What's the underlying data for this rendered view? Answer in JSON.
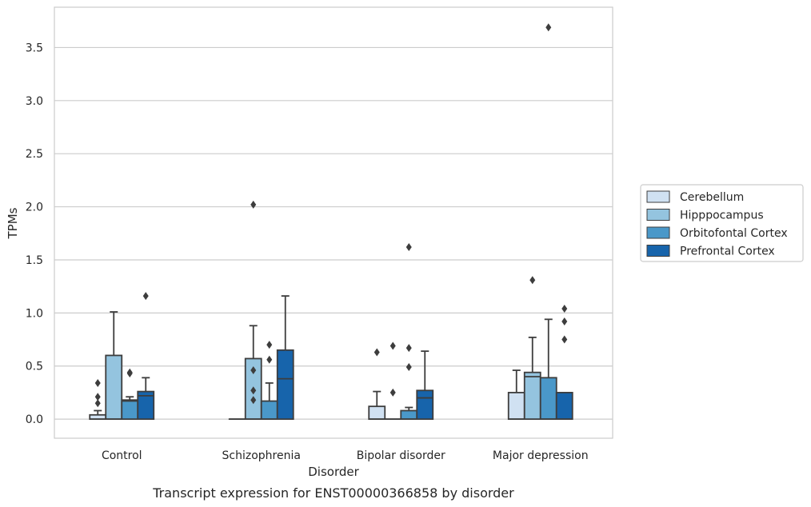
{
  "chart_data": {
    "type": "box",
    "title": "",
    "caption": "Transcript expression for ENST00000366858 by disorder",
    "xlabel": "Disorder",
    "ylabel": "TPMs",
    "ylim": [
      -0.18,
      3.88
    ],
    "yticks": [
      "0.0",
      "0.5",
      "1.0",
      "1.5",
      "2.0",
      "2.5",
      "3.0",
      "3.5"
    ],
    "grid": "horizontal",
    "legend_position": "right",
    "categories": [
      "Control",
      "Schizophrenia",
      "Bipolar disorder",
      "Major depression"
    ],
    "series": [
      {
        "name": "Cerebellum",
        "color": "#d0e1f2",
        "boxes": [
          {
            "q1": 0.0,
            "median": 0.0,
            "q3": 0.04,
            "whisker_low": 0.0,
            "whisker_high": 0.08,
            "outliers": [
              0.15,
              0.21,
              0.34
            ]
          },
          {
            "q1": 0.0,
            "median": 0.0,
            "q3": 0.0,
            "whisker_low": 0.0,
            "whisker_high": 0.0,
            "outliers": []
          },
          {
            "q1": 0.0,
            "median": 0.0,
            "q3": 0.12,
            "whisker_low": 0.0,
            "whisker_high": 0.26,
            "outliers": [
              0.63
            ]
          },
          {
            "q1": 0.0,
            "median": 0.0,
            "q3": 0.25,
            "whisker_low": 0.0,
            "whisker_high": 0.46,
            "outliers": []
          }
        ]
      },
      {
        "name": "Hipppocampus",
        "color": "#94c4df",
        "boxes": [
          {
            "q1": 0.0,
            "median": 0.0,
            "q3": 0.6,
            "whisker_low": 0.0,
            "whisker_high": 1.01,
            "outliers": []
          },
          {
            "q1": 0.0,
            "median": 0.0,
            "q3": 0.57,
            "whisker_low": 0.0,
            "whisker_high": 0.88,
            "outliers": [
              0.18,
              0.27,
              0.46,
              2.02
            ]
          },
          {
            "q1": 0.0,
            "median": 0.0,
            "q3": 0.0,
            "whisker_low": 0.0,
            "whisker_high": 0.0,
            "outliers": [
              0.25,
              0.69
            ]
          },
          {
            "q1": 0.0,
            "median": 0.4,
            "q3": 0.44,
            "whisker_low": 0.0,
            "whisker_high": 0.77,
            "outliers": [
              1.31
            ]
          }
        ]
      },
      {
        "name": "Orbitofontal Cortex",
        "color": "#4a98c9",
        "boxes": [
          {
            "q1": 0.0,
            "median": 0.17,
            "q3": 0.18,
            "whisker_low": 0.0,
            "whisker_high": 0.21,
            "outliers": [
              0.43,
              0.44
            ]
          },
          {
            "q1": 0.0,
            "median": 0.0,
            "q3": 0.17,
            "whisker_low": 0.0,
            "whisker_high": 0.34,
            "outliers": [
              0.56,
              0.7
            ]
          },
          {
            "q1": 0.0,
            "median": 0.0,
            "q3": 0.08,
            "whisker_low": 0.0,
            "whisker_high": 0.11,
            "outliers": [
              0.49,
              0.67,
              1.62
            ]
          },
          {
            "q1": 0.0,
            "median": 0.0,
            "q3": 0.39,
            "whisker_low": 0.0,
            "whisker_high": 0.94,
            "outliers": [
              3.69
            ]
          }
        ]
      },
      {
        "name": "Prefrontal Cortex",
        "color": "#1764ab",
        "boxes": [
          {
            "q1": 0.0,
            "median": 0.22,
            "q3": 0.26,
            "whisker_low": 0.0,
            "whisker_high": 0.39,
            "outliers": [
              1.16
            ]
          },
          {
            "q1": 0.0,
            "median": 0.38,
            "q3": 0.65,
            "whisker_low": 0.0,
            "whisker_high": 1.16,
            "outliers": []
          },
          {
            "q1": 0.0,
            "median": 0.2,
            "q3": 0.27,
            "whisker_low": 0.0,
            "whisker_high": 0.64,
            "outliers": []
          },
          {
            "q1": 0.0,
            "median": 0.0,
            "q3": 0.25,
            "whisker_low": 0.0,
            "whisker_high": 0.25,
            "outliers": [
              0.75,
              0.92,
              1.04
            ]
          }
        ]
      }
    ]
  },
  "colors": {
    "grid": "#cccccc",
    "frame": "#cccccc",
    "line": "#3d3d3d",
    "text": "#262626"
  }
}
